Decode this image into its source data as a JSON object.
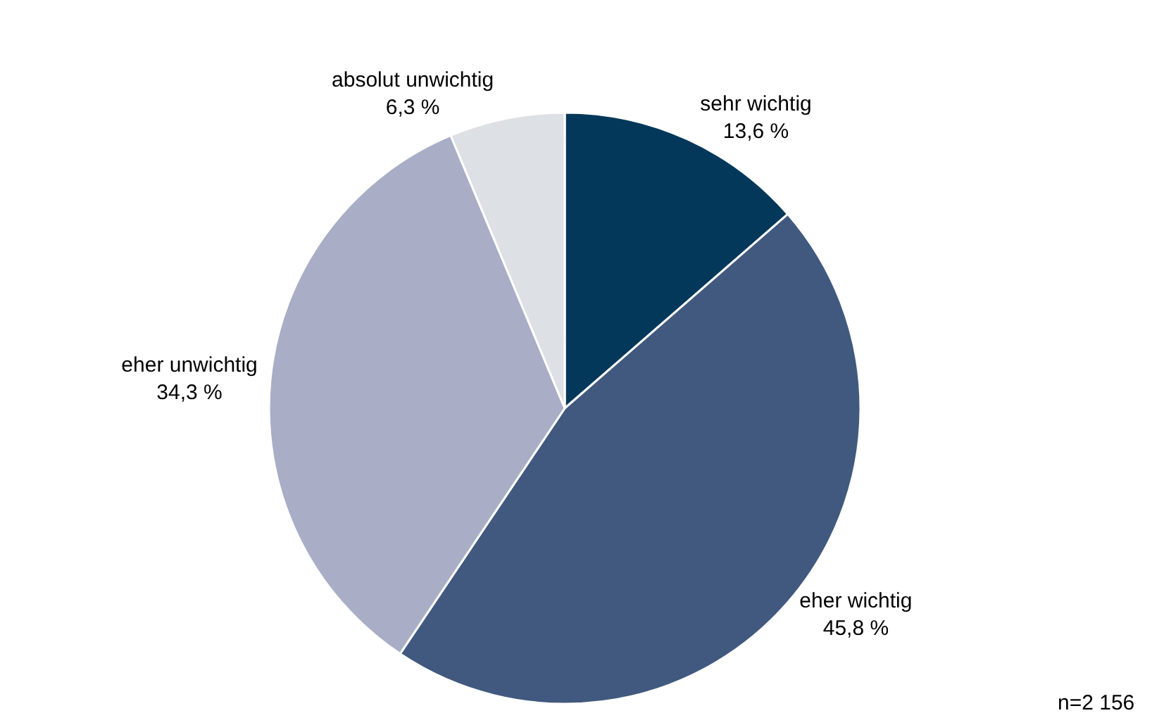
{
  "chart_data": {
    "type": "pie",
    "categories": [
      "sehr wichtig",
      "eher wichtig",
      "eher unwichtig",
      "absolut unwichtig"
    ],
    "values": [
      13.6,
      45.8,
      34.3,
      6.3
    ],
    "value_labels": [
      "13,6 %",
      "45,8 %",
      "34,3 %",
      "6,3 %"
    ],
    "colors": [
      "#04385a",
      "#41597f",
      "#a9aec6",
      "#dde0e4"
    ],
    "legend": false,
    "annotations": [
      "n=2 156"
    ]
  }
}
